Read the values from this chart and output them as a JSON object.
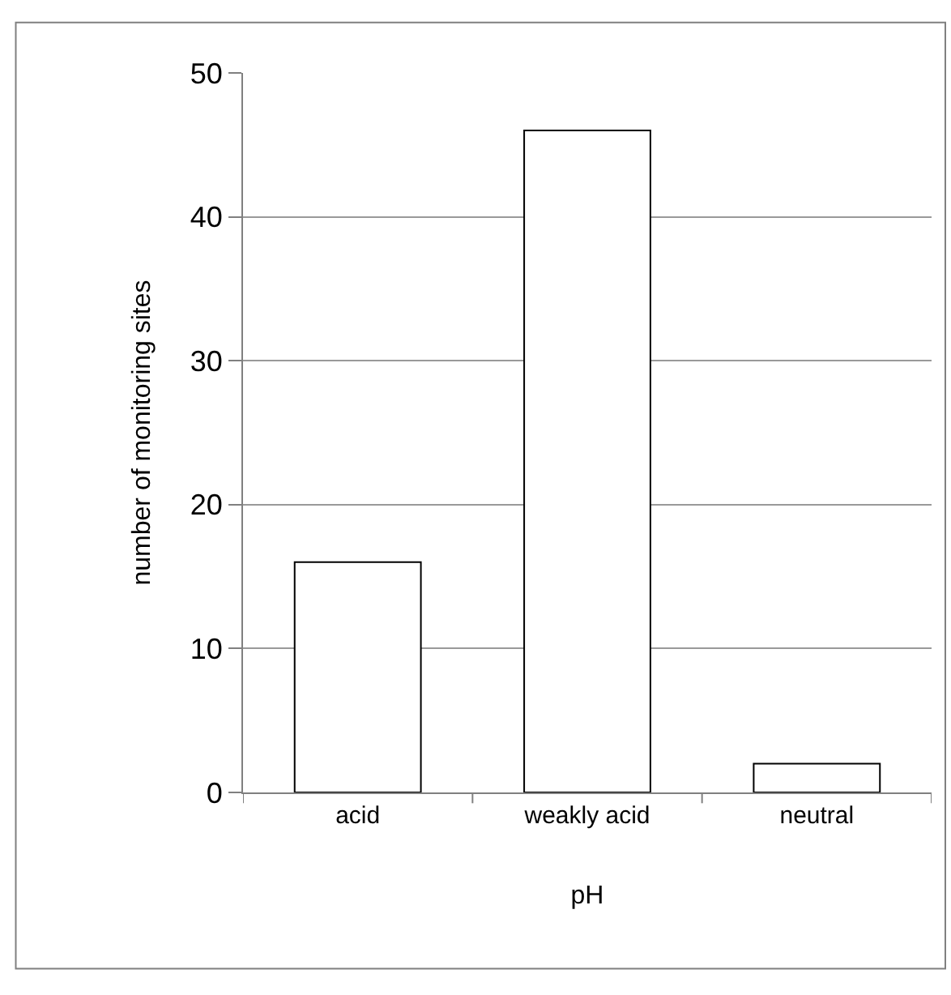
{
  "chart_data": {
    "type": "bar",
    "xlabel": "pH",
    "ylabel": "number of monitoring sites",
    "categories": [
      "acid",
      "weakly acid",
      "neutral"
    ],
    "values": [
      16,
      46,
      2
    ],
    "color": "#ffffff",
    "ylim": [
      0,
      50
    ],
    "yticks": [
      0,
      10,
      20,
      30,
      40,
      50
    ],
    "grid": "y",
    "legend": false
  }
}
